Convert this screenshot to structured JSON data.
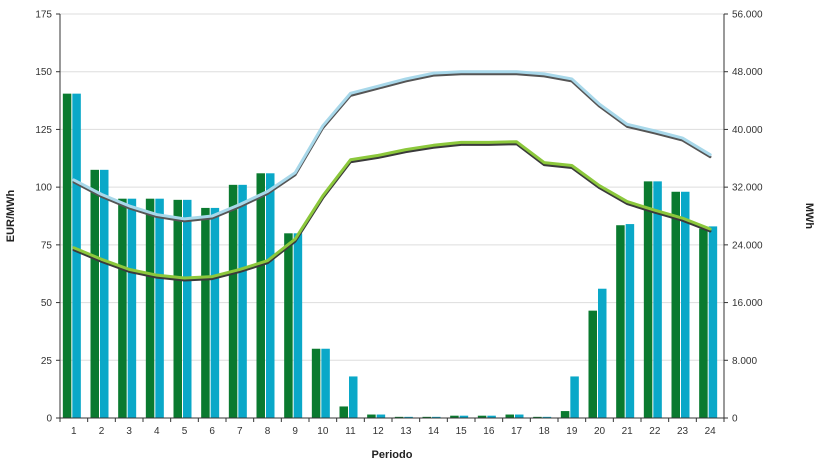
{
  "chart_data": {
    "type": "bar",
    "xlabel": "Periodo",
    "ylabel_left": "EUR/MWh",
    "ylabel_right": "MWh",
    "grid": true,
    "categories": [
      "1",
      "2",
      "3",
      "4",
      "5",
      "6",
      "7",
      "8",
      "9",
      "10",
      "11",
      "12",
      "13",
      "14",
      "15",
      "16",
      "17",
      "18",
      "19",
      "20",
      "21",
      "22",
      "23",
      "24"
    ],
    "y_left": {
      "min": 0,
      "max": 175,
      "ticks": [
        "0",
        "25",
        "50",
        "75",
        "100",
        "125",
        "150",
        "175"
      ]
    },
    "y_right": {
      "min": 0,
      "max": 56000,
      "ticks": [
        "0",
        "8.000",
        "16.000",
        "24.000",
        "32.000",
        "40.000",
        "48.000",
        "56.000"
      ]
    },
    "bar_series": [
      {
        "color": "#0a7a2f",
        "axis": "left",
        "values": [
          140.5,
          107.5,
          95,
          95,
          94.5,
          91,
          101,
          106,
          80,
          30,
          5,
          1.5,
          0.5,
          0.5,
          1,
          1,
          1.5,
          0.5,
          3,
          46.5,
          83.5,
          102.5,
          98,
          82
        ]
      },
      {
        "color": "#0aa8c8",
        "axis": "left",
        "values": [
          140.5,
          107.5,
          95,
          95,
          94.5,
          91,
          101,
          106,
          80,
          30,
          18,
          1.5,
          0.5,
          0.5,
          1,
          1,
          1.5,
          0.5,
          18,
          56,
          84,
          102.5,
          98,
          83
        ]
      }
    ],
    "line_series": [
      {
        "color": "#a8d8ea",
        "shadow": "#555555",
        "axis": "right",
        "values": [
          33000,
          31000,
          29400,
          28200,
          27600,
          28000,
          29600,
          31400,
          34000,
          40500,
          45000,
          46000,
          47000,
          47800,
          48000,
          48000,
          48000,
          47700,
          47000,
          43500,
          40700,
          39800,
          38800,
          36500
        ]
      },
      {
        "color": "#8cc83c",
        "shadow": "#3a3a3a",
        "axis": "right",
        "values": [
          23600,
          22000,
          20600,
          19800,
          19400,
          19600,
          20600,
          21800,
          24800,
          30800,
          35800,
          36400,
          37200,
          37800,
          38200,
          38200,
          38300,
          35400,
          35000,
          32200,
          30000,
          28800,
          27700,
          26200
        ]
      }
    ]
  }
}
